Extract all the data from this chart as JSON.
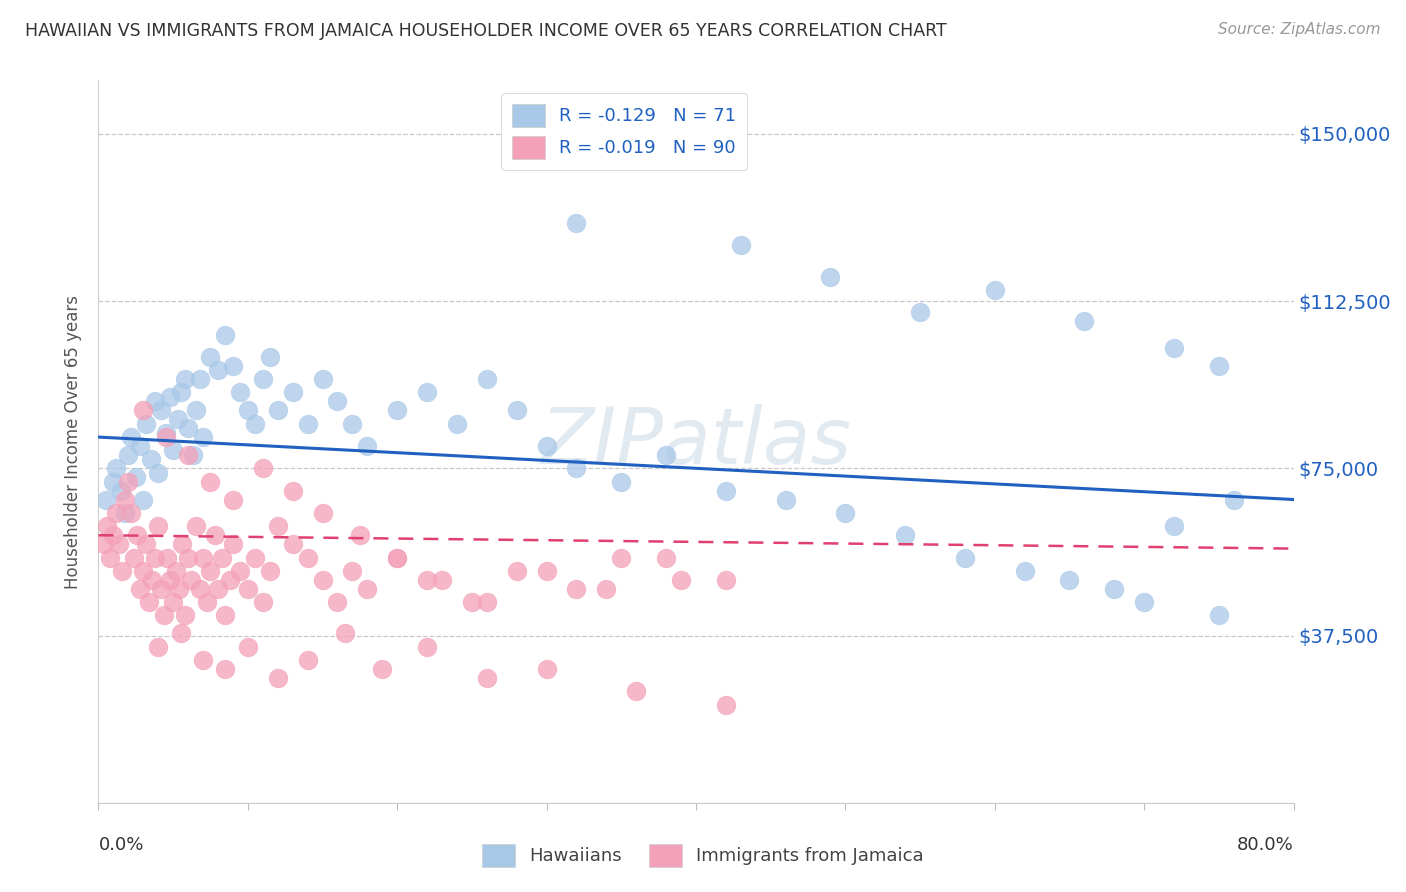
{
  "title": "HAWAIIAN VS IMMIGRANTS FROM JAMAICA HOUSEHOLDER INCOME OVER 65 YEARS CORRELATION CHART",
  "source": "Source: ZipAtlas.com",
  "ylabel": "Householder Income Over 65 years",
  "watermark": "ZIPatlas",
  "legend_label1": "Hawaiians",
  "legend_label2": "Immigrants from Jamaica",
  "r1": "-0.129",
  "n1": "71",
  "r2": "-0.019",
  "n2": "90",
  "color_blue": "#a8c8e8",
  "color_pink": "#f4a0b8",
  "line_blue": "#2060c0",
  "line_pink": "#e04070",
  "xlim": [
    0.0,
    0.8
  ],
  "ylim": [
    0,
    162000
  ],
  "ytick_vals": [
    0,
    37500,
    75000,
    112500,
    150000
  ],
  "ytick_labels_right": [
    "",
    "$37,500",
    "$75,000",
    "$112,500",
    "$150,000"
  ],
  "hawaiian_x": [
    0.005,
    0.01,
    0.012,
    0.015,
    0.018,
    0.02,
    0.022,
    0.025,
    0.028,
    0.03,
    0.032,
    0.035,
    0.038,
    0.04,
    0.042,
    0.045,
    0.048,
    0.05,
    0.053,
    0.055,
    0.058,
    0.06,
    0.063,
    0.065,
    0.068,
    0.07,
    0.075,
    0.08,
    0.085,
    0.09,
    0.095,
    0.1,
    0.105,
    0.11,
    0.115,
    0.12,
    0.13,
    0.14,
    0.15,
    0.16,
    0.17,
    0.18,
    0.2,
    0.22,
    0.24,
    0.26,
    0.28,
    0.3,
    0.32,
    0.35,
    0.38,
    0.42,
    0.46,
    0.5,
    0.54,
    0.58,
    0.62,
    0.65,
    0.7,
    0.75,
    0.32,
    0.43,
    0.49,
    0.55,
    0.6,
    0.66,
    0.72,
    0.75,
    0.76,
    0.72,
    0.68
  ],
  "hawaiian_y": [
    68000,
    72000,
    75000,
    70000,
    65000,
    78000,
    82000,
    73000,
    80000,
    68000,
    85000,
    77000,
    90000,
    74000,
    88000,
    83000,
    91000,
    79000,
    86000,
    92000,
    95000,
    84000,
    78000,
    88000,
    95000,
    82000,
    100000,
    97000,
    105000,
    98000,
    92000,
    88000,
    85000,
    95000,
    100000,
    88000,
    92000,
    85000,
    95000,
    90000,
    85000,
    80000,
    88000,
    92000,
    85000,
    95000,
    88000,
    80000,
    75000,
    72000,
    78000,
    70000,
    68000,
    65000,
    60000,
    55000,
    52000,
    50000,
    45000,
    42000,
    130000,
    125000,
    118000,
    110000,
    115000,
    108000,
    102000,
    98000,
    68000,
    62000,
    48000
  ],
  "jamaica_x": [
    0.004,
    0.006,
    0.008,
    0.01,
    0.012,
    0.014,
    0.016,
    0.018,
    0.02,
    0.022,
    0.024,
    0.026,
    0.028,
    0.03,
    0.032,
    0.034,
    0.036,
    0.038,
    0.04,
    0.042,
    0.044,
    0.046,
    0.048,
    0.05,
    0.052,
    0.054,
    0.056,
    0.058,
    0.06,
    0.062,
    0.065,
    0.068,
    0.07,
    0.073,
    0.075,
    0.078,
    0.08,
    0.083,
    0.085,
    0.088,
    0.09,
    0.095,
    0.1,
    0.105,
    0.11,
    0.115,
    0.12,
    0.13,
    0.14,
    0.15,
    0.16,
    0.17,
    0.18,
    0.2,
    0.22,
    0.25,
    0.28,
    0.32,
    0.35,
    0.39,
    0.03,
    0.045,
    0.06,
    0.075,
    0.09,
    0.11,
    0.13,
    0.15,
    0.175,
    0.2,
    0.23,
    0.26,
    0.3,
    0.34,
    0.38,
    0.42,
    0.04,
    0.055,
    0.07,
    0.085,
    0.1,
    0.12,
    0.14,
    0.165,
    0.19,
    0.22,
    0.26,
    0.3,
    0.36,
    0.42
  ],
  "jamaica_y": [
    58000,
    62000,
    55000,
    60000,
    65000,
    58000,
    52000,
    68000,
    72000,
    65000,
    55000,
    60000,
    48000,
    52000,
    58000,
    45000,
    50000,
    55000,
    62000,
    48000,
    42000,
    55000,
    50000,
    45000,
    52000,
    48000,
    58000,
    42000,
    55000,
    50000,
    62000,
    48000,
    55000,
    45000,
    52000,
    60000,
    48000,
    55000,
    42000,
    50000,
    58000,
    52000,
    48000,
    55000,
    45000,
    52000,
    62000,
    58000,
    55000,
    50000,
    45000,
    52000,
    48000,
    55000,
    50000,
    45000,
    52000,
    48000,
    55000,
    50000,
    88000,
    82000,
    78000,
    72000,
    68000,
    75000,
    70000,
    65000,
    60000,
    55000,
    50000,
    45000,
    52000,
    48000,
    55000,
    50000,
    35000,
    38000,
    32000,
    30000,
    35000,
    28000,
    32000,
    38000,
    30000,
    35000,
    28000,
    30000,
    25000,
    22000
  ],
  "hawaiian_trend": [
    82000,
    68000
  ],
  "jamaica_trend": [
    60000,
    57000
  ]
}
